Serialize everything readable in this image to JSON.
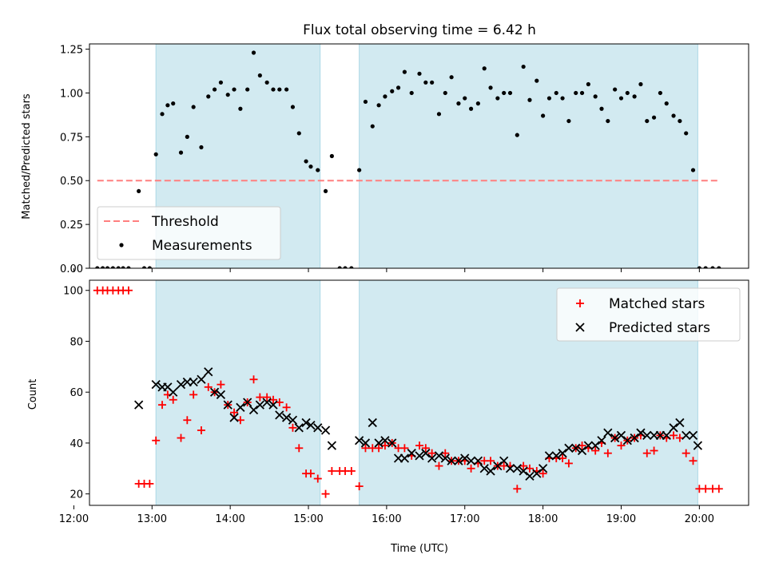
{
  "title": "Flux total observing time = 6.42 h",
  "colors": {
    "shade": "#add8e6",
    "threshold": "#ff7f7f",
    "matched": "#ff0000",
    "predicted": "#000000"
  },
  "chart_data": [
    {
      "type": "scatter",
      "ylabel": "Matched/Predicted stars",
      "xlim": [
        12.2,
        20.63
      ],
      "ylim": [
        0,
        1.28
      ],
      "yticks": [
        "0.00",
        "0.25",
        "0.50",
        "0.75",
        "1.00",
        "1.25"
      ],
      "shaded_intervals": [
        [
          13.05,
          15.15
        ],
        [
          15.65,
          19.98
        ]
      ],
      "legend": {
        "position": "lower-left",
        "threshold_label": "Threshold",
        "measurements_label": "Measurements"
      },
      "threshold": {
        "value": 0.5,
        "x_range": [
          12.3,
          20.25
        ]
      },
      "series": [
        {
          "name": "Measurements",
          "x": [
            12.3,
            12.37,
            12.43,
            12.5,
            12.57,
            12.63,
            12.7,
            12.83,
            12.9,
            12.97,
            13.05,
            13.13,
            13.2,
            13.27,
            13.37,
            13.45,
            13.53,
            13.63,
            13.72,
            13.8,
            13.88,
            13.97,
            14.05,
            14.13,
            14.22,
            14.3,
            14.38,
            14.47,
            14.55,
            14.63,
            14.72,
            14.8,
            14.88,
            14.97,
            15.03,
            15.12,
            15.22,
            15.3,
            15.4,
            15.47,
            15.55,
            15.65,
            15.73,
            15.82,
            15.9,
            15.98,
            16.07,
            16.15,
            16.23,
            16.32,
            16.42,
            16.5,
            16.58,
            16.67,
            16.75,
            16.83,
            16.92,
            17.0,
            17.08,
            17.17,
            17.25,
            17.33,
            17.42,
            17.5,
            17.58,
            17.67,
            17.75,
            17.83,
            17.92,
            18.0,
            18.08,
            18.17,
            18.25,
            18.33,
            18.42,
            18.5,
            18.58,
            18.67,
            18.75,
            18.83,
            18.92,
            19.0,
            19.08,
            19.17,
            19.25,
            19.33,
            19.42,
            19.5,
            19.58,
            19.67,
            19.75,
            19.83,
            19.92,
            20.0,
            20.08,
            20.17,
            20.25
          ],
          "y": [
            0,
            0,
            0,
            0,
            0,
            0,
            0,
            0.44,
            0,
            0,
            0.65,
            0.88,
            0.93,
            0.94,
            0.66,
            0.75,
            0.92,
            0.69,
            0.98,
            1.02,
            1.06,
            0.99,
            1.02,
            0.91,
            1.02,
            1.23,
            1.1,
            1.06,
            1.02,
            1.02,
            1.02,
            0.92,
            0.77,
            0.61,
            0.58,
            0.56,
            0.44,
            0.64,
            0,
            0,
            0,
            0.56,
            0.95,
            0.81,
            0.93,
            0.98,
            1.01,
            1.03,
            1.12,
            1.0,
            1.11,
            1.06,
            1.06,
            0.88,
            1.0,
            1.09,
            0.94,
            0.97,
            0.91,
            0.94,
            1.14,
            1.03,
            0.97,
            1.0,
            1.0,
            0.76,
            1.15,
            0.96,
            1.07,
            0.87,
            0.97,
            1.0,
            0.97,
            0.84,
            1.0,
            1.0,
            1.05,
            0.98,
            0.91,
            0.84,
            1.02,
            0.97,
            1.0,
            0.98,
            1.05,
            0.84,
            0.86,
            1.0,
            0.94,
            0.87,
            0.84,
            0.77,
            0.56,
            0,
            0,
            0,
            0
          ]
        }
      ]
    },
    {
      "type": "scatter",
      "ylabel": "Count",
      "xlabel": "Time (UTC)",
      "xlim": [
        12.2,
        20.63
      ],
      "ylim": [
        15.5,
        104
      ],
      "yticks": [
        "20",
        "40",
        "60",
        "80",
        "100"
      ],
      "xticks": [
        {
          "value": 12,
          "label": "12:00"
        },
        {
          "value": 13,
          "label": "13:00"
        },
        {
          "value": 14,
          "label": "14:00"
        },
        {
          "value": 15,
          "label": "15:00"
        },
        {
          "value": 16,
          "label": "16:00"
        },
        {
          "value": 17,
          "label": "17:00"
        },
        {
          "value": 18,
          "label": "18:00"
        },
        {
          "value": 19,
          "label": "19:00"
        },
        {
          "value": 20,
          "label": "20:00"
        }
      ],
      "shaded_intervals": [
        [
          13.05,
          15.15
        ],
        [
          15.65,
          19.98
        ]
      ],
      "legend": {
        "position": "upper-right"
      },
      "series": [
        {
          "name": "Matched stars",
          "x": [
            12.3,
            12.37,
            12.43,
            12.5,
            12.57,
            12.63,
            12.7,
            12.83,
            12.9,
            12.97,
            13.05,
            13.13,
            13.2,
            13.27,
            13.37,
            13.45,
            13.53,
            13.63,
            13.72,
            13.8,
            13.88,
            13.97,
            14.05,
            14.13,
            14.22,
            14.3,
            14.38,
            14.47,
            14.55,
            14.63,
            14.72,
            14.8,
            14.88,
            14.97,
            15.03,
            15.12,
            15.22,
            15.3,
            15.4,
            15.47,
            15.55,
            15.65,
            15.73,
            15.82,
            15.9,
            15.98,
            16.07,
            16.15,
            16.23,
            16.32,
            16.42,
            16.5,
            16.58,
            16.67,
            16.75,
            16.83,
            16.92,
            17.0,
            17.08,
            17.17,
            17.25,
            17.33,
            17.42,
            17.5,
            17.58,
            17.67,
            17.75,
            17.83,
            17.92,
            18.0,
            18.08,
            18.17,
            18.25,
            18.33,
            18.42,
            18.5,
            18.58,
            18.67,
            18.75,
            18.83,
            18.92,
            19.0,
            19.08,
            19.17,
            19.25,
            19.33,
            19.42,
            19.5,
            19.58,
            19.67,
            19.75,
            19.83,
            19.92,
            20.0,
            20.08,
            20.17,
            20.25
          ],
          "y": [
            100,
            100,
            100,
            100,
            100,
            100,
            100,
            24,
            24,
            24,
            41,
            55,
            59,
            57,
            42,
            49,
            59,
            45,
            62,
            60,
            63,
            55,
            52,
            49,
            56,
            65,
            58,
            58,
            57,
            56,
            54,
            46,
            38,
            28,
            28,
            26,
            20,
            29,
            29,
            29,
            29,
            23,
            38,
            38,
            38,
            39,
            40,
            38,
            38,
            35,
            39,
            38,
            36,
            31,
            36,
            33,
            33,
            33,
            30,
            32,
            33,
            33,
            31,
            31,
            31,
            22,
            31,
            30,
            29,
            28,
            34,
            34,
            34,
            32,
            38,
            39,
            38,
            37,
            40,
            36,
            42,
            39,
            41,
            42,
            43,
            36,
            37,
            43,
            42,
            43,
            42,
            36,
            33,
            22,
            22,
            22,
            22
          ]
        },
        {
          "name": "Predicted stars",
          "x": [
            12.83,
            13.05,
            13.13,
            13.2,
            13.27,
            13.37,
            13.45,
            13.53,
            13.63,
            13.72,
            13.8,
            13.88,
            13.97,
            14.05,
            14.13,
            14.22,
            14.3,
            14.38,
            14.47,
            14.55,
            14.63,
            14.72,
            14.8,
            14.88,
            14.97,
            15.03,
            15.12,
            15.22,
            15.3,
            15.65,
            15.73,
            15.82,
            15.9,
            15.98,
            16.07,
            16.15,
            16.23,
            16.32,
            16.42,
            16.5,
            16.58,
            16.67,
            16.75,
            16.83,
            16.92,
            17.0,
            17.08,
            17.17,
            17.25,
            17.33,
            17.42,
            17.5,
            17.58,
            17.67,
            17.75,
            17.83,
            17.92,
            18.0,
            18.08,
            18.17,
            18.25,
            18.33,
            18.42,
            18.5,
            18.58,
            18.67,
            18.75,
            18.83,
            18.92,
            19.0,
            19.08,
            19.17,
            19.25,
            19.33,
            19.42,
            19.5,
            19.58,
            19.67,
            19.75,
            19.83,
            19.92,
            19.98
          ],
          "y": [
            55,
            63,
            62,
            62,
            60,
            63,
            64,
            64,
            65,
            68,
            60,
            59,
            55,
            50,
            54,
            56,
            53,
            55,
            56,
            55,
            51,
            50,
            49,
            46,
            48,
            47,
            46,
            45,
            39,
            41,
            40,
            48,
            40,
            41,
            40,
            34,
            34,
            36,
            35,
            36,
            34,
            35,
            34,
            33,
            33,
            34,
            33,
            33,
            30,
            29,
            31,
            33,
            30,
            30,
            29,
            27,
            28,
            30,
            35,
            35,
            36,
            38,
            38,
            37,
            39,
            39,
            41,
            44,
            42,
            43,
            41,
            42,
            44,
            43,
            43,
            43,
            43,
            46,
            48,
            43,
            43,
            39
          ]
        }
      ]
    }
  ]
}
